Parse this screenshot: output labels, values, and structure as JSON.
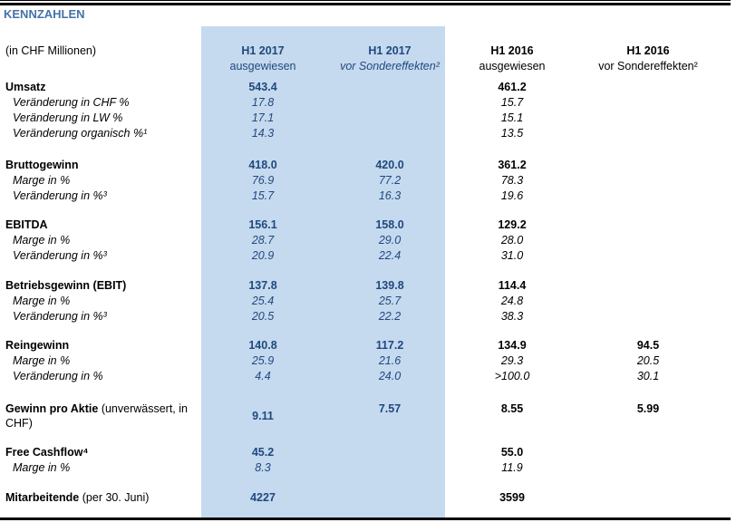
{
  "title": "KENNZAHLEN",
  "unit_label": "(in CHF Millionen)",
  "columns": [
    {
      "line1": "H1 2017",
      "line2": "ausgewiesen"
    },
    {
      "line1": "H1 2017",
      "line2": "vor Sondereffekten²"
    },
    {
      "line1": "H1 2016",
      "line2": "ausgewiesen"
    },
    {
      "line1": "H1 2016",
      "line2": "vor Sondereffekten²"
    }
  ],
  "rows": {
    "umsatz": {
      "label": "Umsatz",
      "v": [
        "543.4",
        "",
        "461.2",
        ""
      ]
    },
    "umsatz_chf": {
      "label": "Veränderung in CHF %",
      "v": [
        "17.8",
        "",
        "15.7",
        ""
      ]
    },
    "umsatz_lw": {
      "label": "Veränderung in LW %",
      "v": [
        "17.1",
        "",
        "15.1",
        ""
      ]
    },
    "umsatz_org": {
      "label": "Veränderung organisch %¹",
      "v": [
        "14.3",
        "",
        "13.5",
        ""
      ]
    },
    "brutto": {
      "label": "Bruttogewinn",
      "v": [
        "418.0",
        "420.0",
        "361.2",
        ""
      ]
    },
    "brutto_marge": {
      "label": "Marge in %",
      "v": [
        "76.9",
        "77.2",
        "78.3",
        ""
      ]
    },
    "brutto_ver": {
      "label": "Veränderung in %³",
      "v": [
        "15.7",
        "16.3",
        "19.6",
        ""
      ]
    },
    "ebitda": {
      "label": "EBITDA",
      "v": [
        "156.1",
        "158.0",
        "129.2",
        ""
      ]
    },
    "ebitda_marge": {
      "label": "Marge in %",
      "v": [
        "28.7",
        "29.0",
        "28.0",
        ""
      ]
    },
    "ebitda_ver": {
      "label": "Veränderung in %³",
      "v": [
        "20.9",
        "22.4",
        "31.0",
        ""
      ]
    },
    "ebit": {
      "label": "Betriebsgewinn (EBIT)",
      "v": [
        "137.8",
        "139.8",
        "114.4",
        ""
      ]
    },
    "ebit_marge": {
      "label": "Marge in %",
      "v": [
        "25.4",
        "25.7",
        "24.8",
        ""
      ]
    },
    "ebit_ver": {
      "label": "Veränderung in %³",
      "v": [
        "20.5",
        "22.2",
        "38.3",
        ""
      ]
    },
    "rein": {
      "label": "Reingewinn",
      "v": [
        "140.8",
        "117.2",
        "134.9",
        "94.5"
      ]
    },
    "rein_marge": {
      "label": "Marge in %",
      "v": [
        "25.9",
        "21.6",
        "29.3",
        "20.5"
      ]
    },
    "rein_ver": {
      "label": "Veränderung in %",
      "v": [
        "4.4",
        "24.0",
        ">100.0",
        "30.1"
      ]
    },
    "gpa": {
      "label": "Gewinn pro Aktie",
      "note": "(unverwässert, in CHF)",
      "v": [
        "9.11",
        "7.57",
        "8.55",
        "5.99"
      ]
    },
    "fcf": {
      "label": "Free Cashflow⁴",
      "v": [
        "45.2",
        "",
        "55.0",
        ""
      ]
    },
    "fcf_marge": {
      "label": "Marge in %",
      "v": [
        "8.3",
        "",
        "11.9",
        ""
      ]
    },
    "mitarb": {
      "label": "Mitarbeitende",
      "note": "(per 30. Juni)",
      "v": [
        "4227",
        "",
        "3599",
        ""
      ]
    }
  }
}
